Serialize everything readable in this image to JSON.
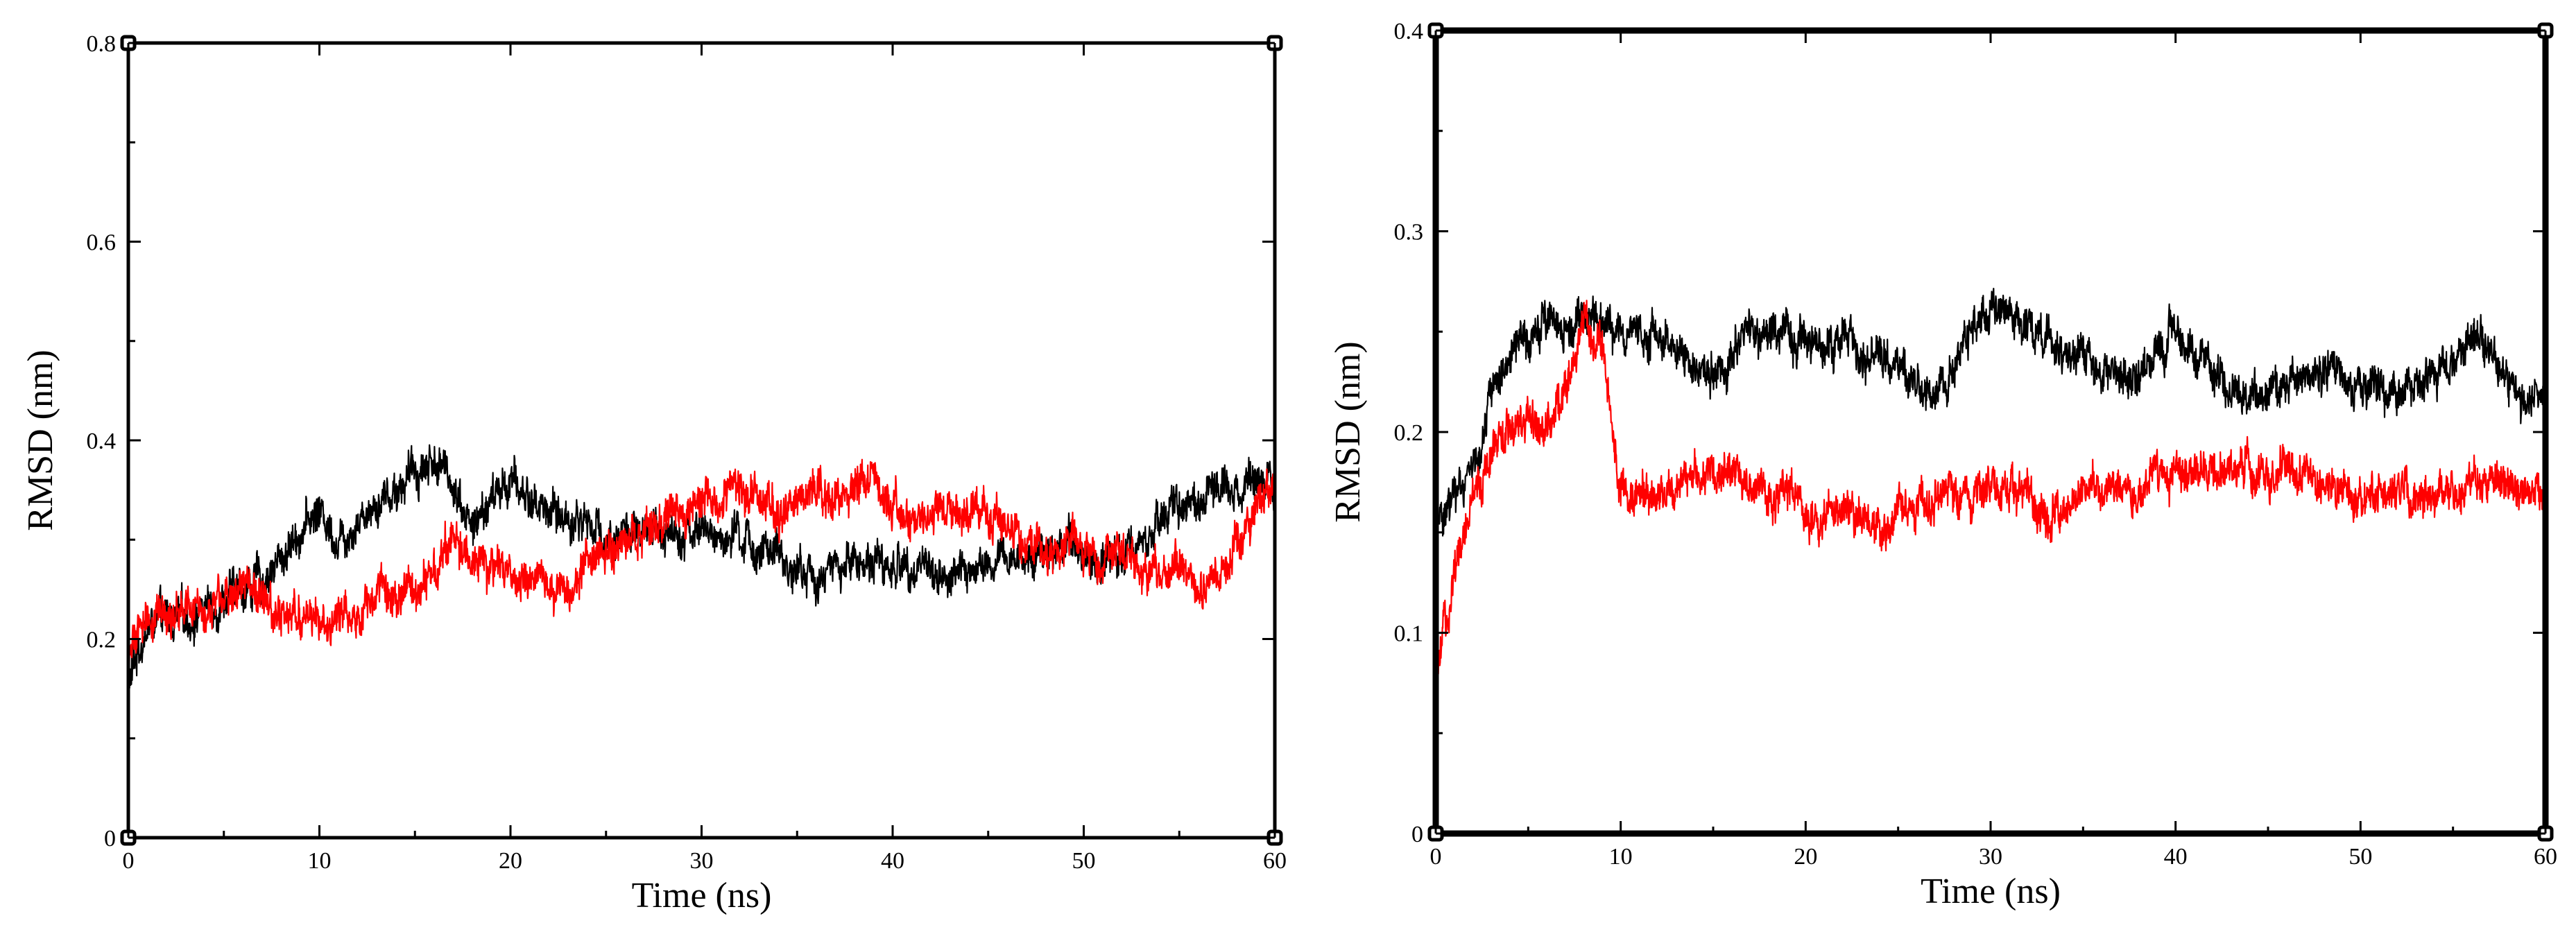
{
  "chart_data": [
    {
      "type": "line",
      "title": "",
      "xlabel": "Time (ns)",
      "ylabel": "RMSD (nm)",
      "xlim": [
        0,
        60
      ],
      "ylim": [
        0,
        0.8
      ],
      "x_ticks": [
        0,
        10,
        20,
        30,
        40,
        50,
        60
      ],
      "y_ticks": [
        0,
        0.2,
        0.4,
        0.6,
        0.8
      ],
      "x_tick_labels": [
        "0",
        "10",
        "20",
        "30",
        "40",
        "50",
        "60"
      ],
      "y_tick_labels": [
        "0",
        "0.2",
        "0.4",
        "0.6",
        "0.8"
      ],
      "grid": false,
      "legend": "none",
      "series": [
        {
          "color": "#000000",
          "x": [
            0,
            0.5,
            1,
            2,
            3,
            4,
            5,
            6,
            7,
            8,
            9,
            10,
            11,
            12,
            13,
            14,
            15,
            16,
            17,
            18,
            19,
            20,
            21,
            22,
            23,
            24,
            25,
            26,
            27,
            28,
            29,
            30,
            31,
            32,
            33,
            34,
            35,
            36,
            37,
            38,
            39,
            40,
            41,
            42,
            43,
            44,
            45,
            46,
            47,
            48,
            49,
            50,
            51,
            52,
            53,
            54,
            55,
            56,
            57,
            58,
            59,
            60
          ],
          "y": [
            0.15,
            0.19,
            0.21,
            0.22,
            0.22,
            0.23,
            0.24,
            0.25,
            0.26,
            0.28,
            0.31,
            0.33,
            0.3,
            0.32,
            0.34,
            0.35,
            0.37,
            0.38,
            0.36,
            0.31,
            0.34,
            0.36,
            0.34,
            0.33,
            0.32,
            0.32,
            0.3,
            0.31,
            0.3,
            0.31,
            0.31,
            0.31,
            0.3,
            0.3,
            0.29,
            0.28,
            0.27,
            0.26,
            0.27,
            0.28,
            0.28,
            0.27,
            0.28,
            0.27,
            0.26,
            0.27,
            0.27,
            0.28,
            0.28,
            0.29,
            0.3,
            0.29,
            0.28,
            0.29,
            0.3,
            0.32,
            0.33,
            0.34,
            0.35,
            0.36,
            0.36,
            0.37
          ]
        },
        {
          "color": "#ff0000",
          "x": [
            0,
            0.5,
            1,
            2,
            3,
            4,
            5,
            6,
            7,
            8,
            9,
            10,
            11,
            12,
            13,
            14,
            15,
            16,
            17,
            18,
            19,
            20,
            21,
            22,
            23,
            24,
            25,
            26,
            27,
            28,
            29,
            30,
            31,
            32,
            33,
            34,
            35,
            36,
            37,
            38,
            39,
            40,
            41,
            42,
            43,
            44,
            45,
            46,
            47,
            48,
            49,
            50,
            51,
            52,
            53,
            54,
            55,
            56,
            57,
            58,
            59,
            60
          ],
          "y": [
            0.18,
            0.2,
            0.22,
            0.23,
            0.23,
            0.23,
            0.24,
            0.26,
            0.25,
            0.22,
            0.22,
            0.22,
            0.22,
            0.23,
            0.24,
            0.24,
            0.25,
            0.27,
            0.3,
            0.28,
            0.27,
            0.27,
            0.26,
            0.26,
            0.25,
            0.28,
            0.29,
            0.3,
            0.31,
            0.32,
            0.33,
            0.34,
            0.34,
            0.35,
            0.34,
            0.33,
            0.34,
            0.34,
            0.35,
            0.35,
            0.37,
            0.33,
            0.32,
            0.33,
            0.34,
            0.33,
            0.33,
            0.31,
            0.3,
            0.29,
            0.29,
            0.29,
            0.28,
            0.28,
            0.27,
            0.27,
            0.27,
            0.26,
            0.26,
            0.28,
            0.33,
            0.35
          ]
        }
      ]
    },
    {
      "type": "line",
      "title": "",
      "xlabel": "Time (ns)",
      "ylabel": "RMSD (nm)",
      "xlim": [
        0,
        60
      ],
      "ylim": [
        0,
        0.4
      ],
      "x_ticks": [
        0,
        10,
        20,
        30,
        40,
        50,
        60
      ],
      "y_ticks": [
        0,
        0.1,
        0.2,
        0.3,
        0.4
      ],
      "x_tick_labels": [
        "0",
        "10",
        "20",
        "30",
        "40",
        "50",
        "60"
      ],
      "y_tick_labels": [
        "0",
        "0.1",
        "0.2",
        "0.3",
        "0.4"
      ],
      "grid": false,
      "legend": "none",
      "series": [
        {
          "color": "#000000",
          "x": [
            0,
            0.5,
            1,
            2,
            3,
            4,
            5,
            6,
            7,
            8,
            9,
            10,
            11,
            12,
            13,
            14,
            15,
            16,
            17,
            18,
            19,
            20,
            21,
            22,
            23,
            24,
            25,
            26,
            27,
            28,
            29,
            30,
            31,
            32,
            33,
            34,
            35,
            36,
            37,
            38,
            39,
            40,
            41,
            42,
            43,
            44,
            45,
            46,
            47,
            48,
            49,
            50,
            51,
            52,
            53,
            54,
            55,
            56,
            57,
            58,
            59,
            60
          ],
          "y": [
            0.16,
            0.16,
            0.17,
            0.18,
            0.22,
            0.24,
            0.25,
            0.26,
            0.25,
            0.26,
            0.25,
            0.25,
            0.25,
            0.25,
            0.24,
            0.23,
            0.23,
            0.24,
            0.25,
            0.25,
            0.25,
            0.25,
            0.24,
            0.25,
            0.24,
            0.24,
            0.23,
            0.22,
            0.22,
            0.23,
            0.25,
            0.26,
            0.26,
            0.25,
            0.25,
            0.24,
            0.24,
            0.23,
            0.23,
            0.23,
            0.24,
            0.25,
            0.24,
            0.23,
            0.22,
            0.22,
            0.22,
            0.22,
            0.23,
            0.23,
            0.23,
            0.22,
            0.22,
            0.22,
            0.22,
            0.23,
            0.24,
            0.25,
            0.24,
            0.23,
            0.22,
            0.22
          ]
        },
        {
          "color": "#ff0000",
          "x": [
            0,
            0.5,
            1,
            2,
            3,
            4,
            5,
            6,
            7,
            8,
            9,
            10,
            11,
            12,
            13,
            14,
            15,
            16,
            17,
            18,
            19,
            20,
            21,
            22,
            23,
            24,
            25,
            26,
            27,
            28,
            29,
            30,
            31,
            32,
            33,
            34,
            35,
            36,
            37,
            38,
            39,
            40,
            41,
            42,
            43,
            44,
            45,
            46,
            47,
            48,
            49,
            50,
            51,
            52,
            53,
            54,
            55,
            56,
            57,
            58,
            59,
            60
          ],
          "y": [
            0.07,
            0.1,
            0.13,
            0.17,
            0.19,
            0.2,
            0.21,
            0.2,
            0.22,
            0.26,
            0.24,
            0.17,
            0.17,
            0.17,
            0.17,
            0.18,
            0.18,
            0.18,
            0.17,
            0.17,
            0.17,
            0.16,
            0.16,
            0.16,
            0.16,
            0.15,
            0.16,
            0.16,
            0.17,
            0.17,
            0.17,
            0.17,
            0.17,
            0.17,
            0.16,
            0.16,
            0.17,
            0.17,
            0.17,
            0.17,
            0.18,
            0.18,
            0.18,
            0.18,
            0.18,
            0.18,
            0.18,
            0.18,
            0.18,
            0.17,
            0.17,
            0.17,
            0.17,
            0.17,
            0.17,
            0.17,
            0.17,
            0.18,
            0.18,
            0.17,
            0.17,
            0.17
          ]
        }
      ]
    }
  ]
}
